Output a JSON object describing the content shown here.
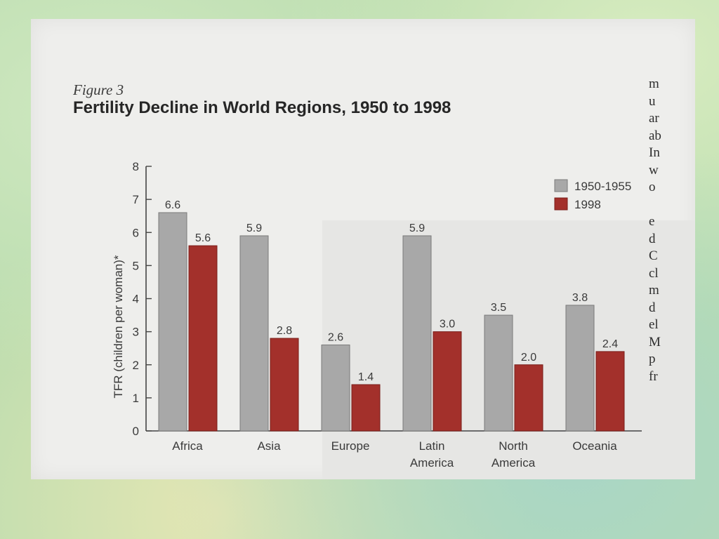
{
  "page": {
    "figure_label": "Figure 3",
    "title": "Fertility Decline in World Regions, 1950 to 1998",
    "side_text_fragments": [
      "m",
      "u",
      "ar",
      "ab",
      "In",
      "w",
      "o",
      "",
      "e",
      "d",
      "C",
      "cl",
      "m",
      "d",
      "el",
      "M",
      "p",
      "fr"
    ]
  },
  "chart_data": {
    "type": "bar",
    "title": "Fertility Decline in World Regions, 1950 to 1998",
    "xlabel": "",
    "ylabel": "TFR (children per woman)*",
    "ylim": [
      0,
      8
    ],
    "yticks": [
      "0",
      "1",
      "2",
      "3",
      "4",
      "5",
      "6",
      "7",
      "8"
    ],
    "categories": [
      [
        "Africa"
      ],
      [
        "Asia"
      ],
      [
        "Europe"
      ],
      [
        "Latin",
        "America"
      ],
      [
        "North",
        "America"
      ],
      [
        "Oceania"
      ]
    ],
    "series": [
      {
        "name": "1950-1955",
        "color": "#a8a8a8",
        "values": [
          6.6,
          5.9,
          2.6,
          5.9,
          3.5,
          3.8
        ],
        "labels": [
          "6.6",
          "5.9",
          "2.6",
          "5.9",
          "3.5",
          "3.8"
        ]
      },
      {
        "name": "1998",
        "color": "#a3302b",
        "values": [
          5.6,
          2.8,
          1.4,
          3.0,
          2.0,
          2.4
        ],
        "labels": [
          "5.6",
          "2.8",
          "1.4",
          "3.0",
          "2.0",
          "2.4"
        ]
      }
    ],
    "legend_position": "top-right",
    "grid": false
  }
}
